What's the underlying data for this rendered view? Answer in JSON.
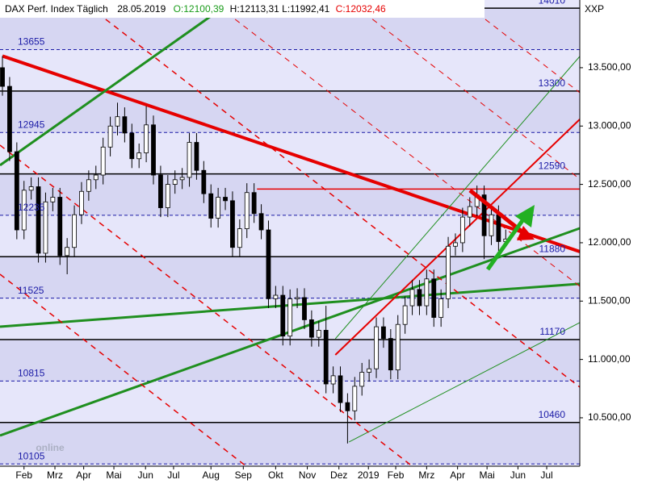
{
  "chart_data": {
    "type": "candlestick",
    "header": {
      "name": "DAX Perf. Index Täglich",
      "date": "28.05.2019",
      "open": "O:12100,39",
      "high_low": "H:12113,31 L:11992,41",
      "close": "C:12032,46",
      "symbol": "XXP",
      "watermark": "online"
    },
    "up_color": "#ffffff",
    "down_color": "#000000",
    "x": [
      0,
      1,
      2,
      3,
      4,
      5,
      6,
      7,
      8,
      9,
      10,
      11,
      12,
      13,
      14,
      15,
      16,
      17,
      18,
      19,
      20,
      21,
      22,
      23,
      24,
      25,
      26,
      27,
      28,
      29,
      30,
      31,
      32,
      33,
      34,
      35,
      36,
      37,
      38,
      39,
      40,
      41,
      42,
      43,
      44,
      45,
      46,
      47,
      48,
      49,
      50,
      51,
      52,
      53,
      54,
      55,
      56,
      57,
      58,
      59,
      60,
      61,
      62,
      63,
      64,
      65,
      66,
      67,
      68,
      69,
      70
    ],
    "open": [
      13500,
      13340,
      12780,
      12110,
      12450,
      12480,
      11910,
      12350,
      12390,
      11890,
      11960,
      12240,
      12440,
      12540,
      12580,
      12820,
      13000,
      13080,
      12940,
      12720,
      12770,
      13010,
      12580,
      12300,
      12500,
      12540,
      12560,
      12860,
      12620,
      12420,
      12210,
      12390,
      12360,
      11960,
      12120,
      12430,
      12250,
      12110,
      11520,
      11550,
      11200,
      11520,
      11530,
      11340,
      11190,
      11250,
      10790,
      10860,
      10630,
      10560,
      10770,
      10890,
      10920,
      11280,
      11180,
      10910,
      11300,
      11460,
      11600,
      11460,
      11690,
      11360,
      11520,
      11970,
      12000,
      12220,
      12310,
      12410,
      12060,
      12240,
      12010
    ],
    "high": [
      13600,
      13420,
      12860,
      12530,
      12560,
      12560,
      12430,
      12470,
      12470,
      12040,
      12320,
      12520,
      12620,
      12660,
      12900,
      13080,
      13200,
      13160,
      13020,
      12850,
      13170,
      13090,
      12660,
      12580,
      12620,
      12640,
      12940,
      12940,
      12700,
      12500,
      12470,
      12470,
      12440,
      12200,
      12510,
      12510,
      12330,
      12190,
      11630,
      11630,
      11600,
      11610,
      11610,
      11420,
      11330,
      11460,
      10940,
      10940,
      10710,
      10850,
      10970,
      11000,
      11360,
      11360,
      11260,
      11380,
      11540,
      11680,
      11680,
      11770,
      11770,
      11600,
      12050,
      12080,
      12300,
      12390,
      12490,
      12490,
      12320,
      12320,
      12113
    ],
    "low": [
      13260,
      12700,
      12030,
      12030,
      12370,
      11830,
      11830,
      12270,
      11810,
      11730,
      11880,
      12160,
      12360,
      12460,
      12500,
      12740,
      12920,
      12860,
      12640,
      12640,
      12690,
      12500,
      12220,
      12220,
      12420,
      12460,
      12480,
      12540,
      12340,
      12130,
      12130,
      12280,
      11880,
      11880,
      12040,
      12170,
      12030,
      11440,
      11440,
      11120,
      11120,
      11440,
      11260,
      11110,
      11110,
      10710,
      10710,
      10550,
      10280,
      10480,
      10690,
      10810,
      10840,
      11100,
      10830,
      10830,
      11220,
      11380,
      11380,
      11380,
      11280,
      11280,
      11440,
      11890,
      11920,
      12140,
      12230,
      11860,
      11980,
      11930,
      11992
    ],
    "close": [
      13340,
      12780,
      12110,
      12450,
      12480,
      11910,
      12350,
      12390,
      11890,
      11960,
      12240,
      12440,
      12540,
      12580,
      12820,
      13000,
      13080,
      12940,
      12720,
      12770,
      13010,
      12580,
      12300,
      12500,
      12540,
      12560,
      12860,
      12620,
      12420,
      12210,
      12390,
      12360,
      11960,
      12120,
      12430,
      12250,
      12110,
      11520,
      11550,
      11200,
      11520,
      11530,
      11340,
      11190,
      11250,
      10790,
      10860,
      10630,
      10560,
      10770,
      10890,
      10920,
      11280,
      11180,
      10910,
      11300,
      11460,
      11600,
      11460,
      11690,
      11360,
      11520,
      11970,
      12000,
      12220,
      12310,
      12410,
      12060,
      12240,
      12010,
      12032
    ],
    "xlim": [
      -0.34,
      80.3
    ],
    "ylim": [
      10085,
      14080
    ],
    "yticks": [
      {
        "value": 10500,
        "label": "10.500,00"
      },
      {
        "value": 11000,
        "label": "11.000,00"
      },
      {
        "value": 11500,
        "label": "11.500,00"
      },
      {
        "value": 12000,
        "label": "12.000,00"
      },
      {
        "value": 12500,
        "label": "12.500,00"
      },
      {
        "value": 13000,
        "label": "13.000,00"
      },
      {
        "value": 13500,
        "label": "13.500,00"
      }
    ],
    "xticks": [
      {
        "value": 3,
        "label": "Feb"
      },
      {
        "value": 7.3,
        "label": "Mrz"
      },
      {
        "value": 11.3,
        "label": "Apr"
      },
      {
        "value": 15.5,
        "label": "Mai"
      },
      {
        "value": 19.9,
        "label": "Jun"
      },
      {
        "value": 23.8,
        "label": "Jul"
      },
      {
        "value": 29,
        "label": "Aug"
      },
      {
        "value": 33.5,
        "label": "Sep"
      },
      {
        "value": 38,
        "label": "Okt"
      },
      {
        "value": 42.4,
        "label": "Nov"
      },
      {
        "value": 46.8,
        "label": "Dez"
      },
      {
        "value": 50.9,
        "label": "2019"
      },
      {
        "value": 54.7,
        "label": "Feb"
      },
      {
        "value": 59,
        "label": "Mrz"
      },
      {
        "value": 63.3,
        "label": "Apr"
      },
      {
        "value": 67.4,
        "label": "Mai"
      },
      {
        "value": 71.7,
        "label": "Jun"
      },
      {
        "value": 75.7,
        "label": "Jul"
      }
    ],
    "levels": [
      {
        "value": 14010,
        "dashed": false,
        "side": "right"
      },
      {
        "value": 13655,
        "dashed": true,
        "side": "left"
      },
      {
        "value": 13300,
        "dashed": false,
        "side": "right"
      },
      {
        "value": 12945,
        "dashed": true,
        "side": "left"
      },
      {
        "value": 12590,
        "dashed": false,
        "side": "right"
      },
      {
        "value": 12235,
        "dashed": true,
        "side": "left"
      },
      {
        "value": 11880,
        "dashed": false,
        "side": "right"
      },
      {
        "value": 11525,
        "dashed": true,
        "side": "left"
      },
      {
        "value": 11170,
        "dashed": false,
        "side": "right"
      },
      {
        "value": 10815,
        "dashed": true,
        "side": "left"
      },
      {
        "value": 10460,
        "dashed": false,
        "side": "right"
      },
      {
        "value": 10105,
        "dashed": true,
        "side": "left"
      }
    ],
    "level_color": "#1a1aa6",
    "trendlines": [
      {
        "color": "#e60000",
        "width": 4,
        "dashed": false,
        "x": [
          0,
          80.3
        ],
        "y": [
          13600,
          11924
        ]
      },
      {
        "color": "#e60000",
        "width": 1.5,
        "dashed": false,
        "x": [
          35.4,
          80.3
        ],
        "y": [
          12460,
          12460
        ]
      },
      {
        "color": "#1f8f1f",
        "width": 3,
        "dashed": false,
        "x": [
          -0.34,
          80.3
        ],
        "y": [
          11281,
          11648
        ]
      },
      {
        "color": "#1f8f1f",
        "width": 3,
        "dashed": false,
        "x": [
          -0.34,
          80.3
        ],
        "y": [
          10348,
          12124
        ]
      },
      {
        "color": "#1f8f1f",
        "width": 3,
        "dashed": false,
        "x": [
          -0.34,
          29.8
        ],
        "y": [
          12664,
          13977
        ]
      },
      {
        "color": "#e60000",
        "width": 2,
        "dashed": false,
        "x": [
          46.3,
          80.3
        ],
        "y": [
          11039,
          13058
        ]
      },
      {
        "color": "#1f8f1f",
        "width": 1,
        "dashed": false,
        "x": [
          48.2,
          80.3
        ],
        "y": [
          10293,
          11316
        ]
      },
      {
        "color": "#1f8f1f",
        "width": 1,
        "dashed": false,
        "x": [
          46.3,
          80.3
        ],
        "y": [
          11177,
          13597
        ]
      },
      {
        "color": "#e60000",
        "width": 1.5,
        "dashed": true,
        "x": [
          -0.34,
          57
        ],
        "y": [
          12836,
          10085
        ]
      },
      {
        "color": "#e60000",
        "width": 1.5,
        "dashed": true,
        "x": [
          -0.34,
          33.9
        ],
        "y": [
          11730,
          10085
        ]
      },
      {
        "color": "#e60000",
        "width": 1.5,
        "dashed": true,
        "x": [
          10.9,
          80.3
        ],
        "y": [
          14080,
          10763
        ]
      },
      {
        "color": "#e60000",
        "width": 1,
        "dashed": true,
        "x": [
          28.9,
          80.3
        ],
        "y": [
          14080,
          11627
        ]
      },
      {
        "color": "#e60000",
        "width": 1,
        "dashed": true,
        "x": [
          48,
          80.3
        ],
        "y": [
          14080,
          12546
        ]
      },
      {
        "color": "#e60000",
        "width": 1,
        "dashed": true,
        "x": [
          63.7,
          80.3
        ],
        "y": [
          14080,
          13286
        ]
      }
    ]
  }
}
